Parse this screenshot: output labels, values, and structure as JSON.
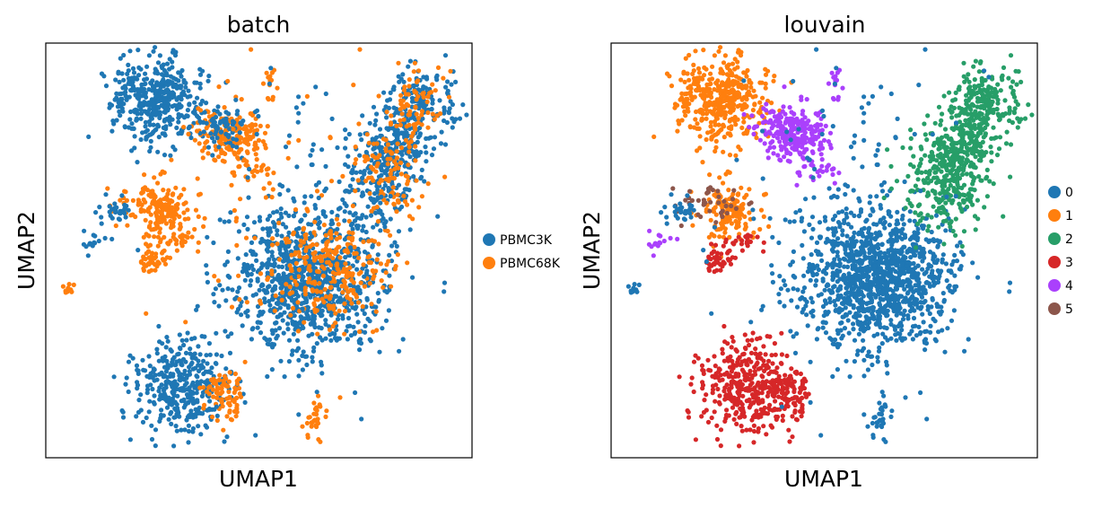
{
  "figure": {
    "panels": [
      {
        "title": "batch",
        "xlabel": "UMAP1",
        "ylabel": "UMAP2",
        "legend": [
          {
            "label": "PBMC3K",
            "color": "#1f77b4"
          },
          {
            "label": "PBMC68K",
            "color": "#ff7f0e"
          }
        ]
      },
      {
        "title": "louvain",
        "xlabel": "UMAP1",
        "ylabel": "UMAP2",
        "legend": [
          {
            "label": "0",
            "color": "#1f77b4"
          },
          {
            "label": "1",
            "color": "#ff7f0e"
          },
          {
            "label": "2",
            "color": "#279e68"
          },
          {
            "label": "3",
            "color": "#d62728"
          },
          {
            "label": "4",
            "color": "#aa40fc"
          },
          {
            "label": "5",
            "color": "#8c564b"
          }
        ]
      }
    ]
  },
  "chart_data": [
    {
      "type": "scatter",
      "title": "batch",
      "xlabel": "UMAP1",
      "ylabel": "UMAP2",
      "grid": false,
      "ticks": false,
      "legend_position": "right",
      "series": [
        {
          "name": "PBMC3K",
          "color": "#1f77b4"
        },
        {
          "name": "PBMC68K",
          "color": "#ff7f0e"
        }
      ]
    },
    {
      "type": "scatter",
      "title": "louvain",
      "xlabel": "UMAP1",
      "ylabel": "UMAP2",
      "grid": false,
      "ticks": false,
      "legend_position": "right",
      "series": [
        {
          "name": "0",
          "color": "#1f77b4"
        },
        {
          "name": "1",
          "color": "#ff7f0e"
        },
        {
          "name": "2",
          "color": "#279e68"
        },
        {
          "name": "3",
          "color": "#d62728"
        },
        {
          "name": "4",
          "color": "#aa40fc"
        },
        {
          "name": "5",
          "color": "#8c564b"
        }
      ]
    }
  ]
}
